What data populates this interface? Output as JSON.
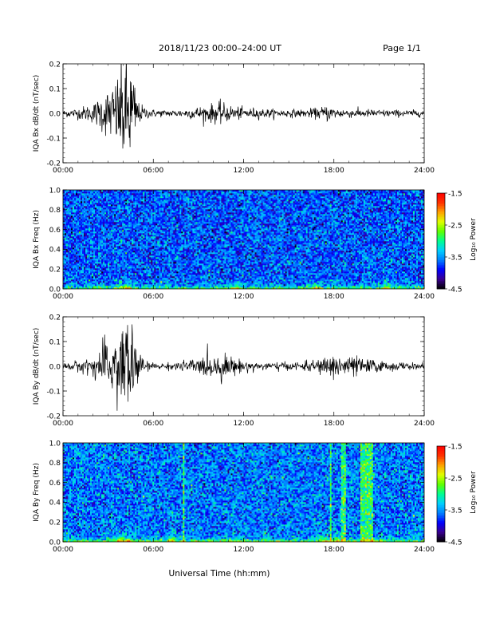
{
  "header": {
    "title": "2018/11/23  00:00–24:00 UT",
    "page": "Page 1/1"
  },
  "footer": {
    "xlabel": "Universal Time (hh:mm)"
  },
  "colorbar": {
    "ticks": [
      "-1.5",
      "-2.5",
      "-3.5",
      "-4.5"
    ],
    "label": "Log₁₀ Power",
    "colors": [
      "#000000",
      "#3a0090",
      "#0000ff",
      "#0080ff",
      "#00d0ff",
      "#00ff90",
      "#60ff00",
      "#e0ff00",
      "#ffa000",
      "#ff3000",
      "#ff0000"
    ]
  },
  "chart_data": [
    {
      "type": "line",
      "ylabel": "IQA Bx dB/dt (nT/sec)",
      "ylim": [
        -0.2,
        0.2
      ],
      "yticks": [
        "0.2",
        "0.1",
        "0.0",
        "-0.1",
        "-0.2"
      ],
      "xticks": [
        "00:00",
        "06:00",
        "12:00",
        "18:00",
        "24:00"
      ],
      "xlim_hours": [
        0,
        24
      ],
      "series": [
        {
          "x": [
            0,
            1,
            2,
            3,
            3.5,
            4,
            4.5,
            5,
            5.5,
            6,
            7,
            8,
            9,
            10,
            10.5,
            11,
            12,
            13,
            14,
            15,
            16,
            17,
            17.5,
            18,
            19,
            20,
            21,
            22,
            23,
            24
          ],
          "envelope": [
            0.012,
            0.02,
            0.035,
            0.09,
            0.12,
            0.2,
            0.2,
            0.04,
            0.02,
            0.014,
            0.012,
            0.015,
            0.025,
            0.035,
            0.04,
            0.03,
            0.02,
            0.018,
            0.015,
            0.014,
            0.014,
            0.02,
            0.03,
            0.02,
            0.016,
            0.015,
            0.014,
            0.013,
            0.012,
            0.012
          ]
        }
      ]
    },
    {
      "type": "heatmap",
      "ylabel": "IQA Bx Freq (Hz)",
      "ylim": [
        0,
        1.0
      ],
      "yticks": [
        "1.0",
        "0.8",
        "0.6",
        "0.4",
        "0.2",
        "0.0"
      ],
      "xticks": [
        "00:00",
        "06:00",
        "12:00",
        "18:00",
        "24:00"
      ],
      "zlim": [
        -4.5,
        -1.5
      ],
      "base_log_power": -3.7,
      "low_freq_boost_hours": [
        3.8,
        4.3,
        11.6,
        16.8,
        21.5
      ],
      "bright_bands_hours": []
    },
    {
      "type": "line",
      "ylabel": "IQA By dB/dt (nT/sec)",
      "ylim": [
        -0.2,
        0.2
      ],
      "yticks": [
        "0.2",
        "0.1",
        "0.0",
        "-0.1",
        "-0.2"
      ],
      "xticks": [
        "00:00",
        "06:00",
        "12:00",
        "18:00",
        "24:00"
      ],
      "xlim_hours": [
        0,
        24
      ],
      "series": [
        {
          "x": [
            0,
            1,
            2,
            3,
            3.5,
            4,
            4.5,
            5,
            5.5,
            6,
            7,
            8,
            9,
            10,
            10.5,
            11,
            12,
            13,
            14,
            15,
            16,
            17,
            17.5,
            18,
            19,
            20,
            21,
            22,
            23,
            24
          ],
          "envelope": [
            0.012,
            0.02,
            0.035,
            0.1,
            0.12,
            0.2,
            0.2,
            0.05,
            0.02,
            0.012,
            0.012,
            0.02,
            0.03,
            0.045,
            0.05,
            0.035,
            0.02,
            0.016,
            0.015,
            0.014,
            0.016,
            0.025,
            0.035,
            0.045,
            0.04,
            0.03,
            0.02,
            0.016,
            0.012,
            0.012
          ]
        }
      ]
    },
    {
      "type": "heatmap",
      "ylabel": "IQA By Freq (Hz)",
      "ylim": [
        0,
        1.0
      ],
      "yticks": [
        "1.0",
        "0.8",
        "0.6",
        "0.4",
        "0.2",
        "0.0"
      ],
      "xticks": [
        "00:00",
        "06:00",
        "12:00",
        "18:00",
        "24:00"
      ],
      "zlim": [
        -4.5,
        -1.5
      ],
      "base_log_power": -3.6,
      "low_freq_boost_hours": [
        3.8,
        4.3,
        7.2,
        17.4,
        18.2
      ],
      "bright_bands_hours": [
        [
          18.5,
          18.8
        ],
        [
          19.8,
          20.6
        ],
        [
          17.7,
          17.8
        ],
        [
          8.0,
          8.1
        ]
      ]
    }
  ]
}
